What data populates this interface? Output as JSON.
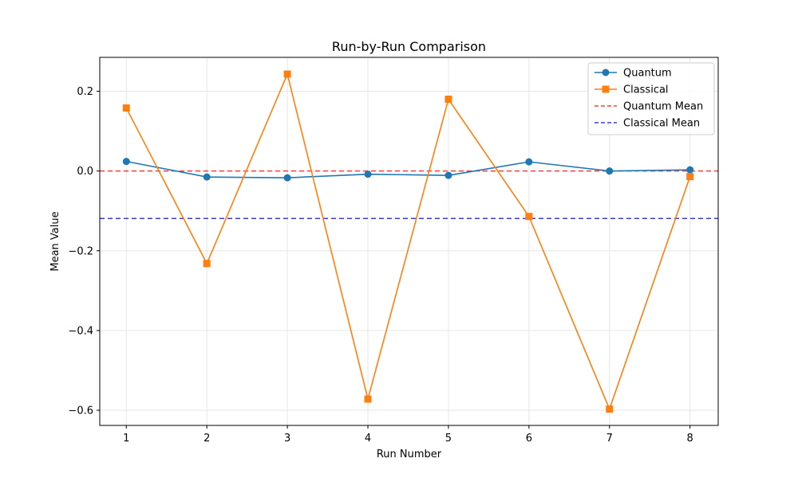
{
  "chart_data": {
    "type": "line",
    "title": "Run-by-Run Comparison",
    "xlabel": "Run Number",
    "ylabel": "Mean Value",
    "x": [
      1,
      2,
      3,
      4,
      5,
      6,
      7,
      8
    ],
    "xlim": [
      0.67,
      8.35
    ],
    "ylim": [
      -0.638,
      0.285
    ],
    "xticks": [
      1,
      2,
      3,
      4,
      5,
      6,
      7,
      8
    ],
    "yticks": [
      0.2,
      0.0,
      -0.2,
      -0.4,
      -0.6
    ],
    "ytick_labels": [
      "0.2",
      "0.0",
      "−0.2",
      "−0.4",
      "−0.6"
    ],
    "grid": true,
    "legend_position": "upper right",
    "series": [
      {
        "name": "Quantum",
        "color": "#1f77b4",
        "marker": "circle",
        "values": [
          0.024,
          -0.015,
          -0.017,
          -0.008,
          -0.011,
          0.023,
          0.0,
          0.003
        ]
      },
      {
        "name": "Classical",
        "color": "#ff7f0e",
        "marker": "square",
        "values": [
          0.158,
          -0.232,
          0.243,
          -0.572,
          0.18,
          -0.114,
          -0.597,
          -0.014
        ]
      }
    ],
    "reference_lines": [
      {
        "name": "Quantum Mean",
        "value": 0.0,
        "color": "#ff3b3b",
        "style": "dashed"
      },
      {
        "name": "Classical Mean",
        "value": -0.119,
        "color": "#3b3bd6",
        "style": "dashed"
      }
    ]
  }
}
